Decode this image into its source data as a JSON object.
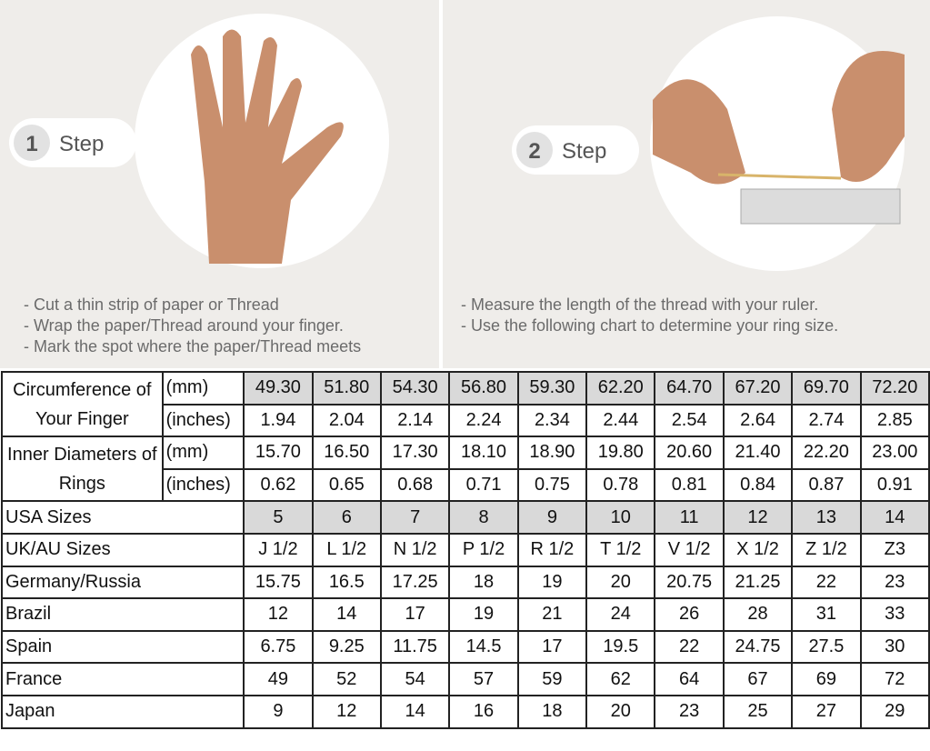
{
  "steps": [
    {
      "number": "1",
      "label": "Step",
      "instructions": [
        "- Cut a thin strip of paper or Thread",
        "- Wrap the paper/Thread around your finger.",
        "- Mark the spot where the paper/Thread meets"
      ]
    },
    {
      "number": "2",
      "label": "Step",
      "instructions": [
        "- Measure the length of the thread with your ruler.",
        "- Use the following chart to determine your ring size."
      ]
    }
  ],
  "table": {
    "measurements": [
      {
        "label": "Circumference of Your Finger",
        "rows": [
          {
            "unit": "(mm)",
            "values": [
              "49.30",
              "51.80",
              "54.30",
              "56.80",
              "59.30",
              "62.20",
              "64.70",
              "67.20",
              "69.70",
              "72.20"
            ]
          },
          {
            "unit": "(inches)",
            "values": [
              "1.94",
              "2.04",
              "2.14",
              "2.24",
              "2.34",
              "2.44",
              "2.54",
              "2.64",
              "2.74",
              "2.85"
            ]
          }
        ]
      },
      {
        "label": "Inner Diameters of Rings",
        "rows": [
          {
            "unit": "(mm)",
            "values": [
              "15.70",
              "16.50",
              "17.30",
              "18.10",
              "18.90",
              "19.80",
              "20.60",
              "21.40",
              "22.20",
              "23.00"
            ]
          },
          {
            "unit": "(inches)",
            "values": [
              "0.62",
              "0.65",
              "0.68",
              "0.71",
              "0.75",
              "0.78",
              "0.81",
              "0.84",
              "0.87",
              "0.91"
            ]
          }
        ]
      }
    ],
    "sizes": [
      {
        "label": "USA Sizes",
        "values": [
          "5",
          "6",
          "7",
          "8",
          "9",
          "10",
          "11",
          "12",
          "13",
          "14"
        ]
      },
      {
        "label": "UK/AU Sizes",
        "values": [
          "J 1/2",
          "L 1/2",
          "N 1/2",
          "P 1/2",
          "R 1/2",
          "T 1/2",
          "V 1/2",
          "X 1/2",
          "Z 1/2",
          "Z3"
        ]
      },
      {
        "label": "Germany/Russia",
        "values": [
          "15.75",
          "16.5",
          "17.25",
          "18",
          "19",
          "20",
          "20.75",
          "21.25",
          "22",
          "23"
        ]
      },
      {
        "label": "Brazil",
        "values": [
          "12",
          "14",
          "17",
          "19",
          "21",
          "24",
          "26",
          "28",
          "31",
          "33"
        ]
      },
      {
        "label": "Spain",
        "values": [
          "6.75",
          "9.25",
          "11.75",
          "14.5",
          "17",
          "19.5",
          "22",
          "24.75",
          "27.5",
          "30"
        ]
      },
      {
        "label": "France",
        "values": [
          "49",
          "52",
          "54",
          "57",
          "59",
          "62",
          "64",
          "67",
          "69",
          "72"
        ]
      },
      {
        "label": "Japan",
        "values": [
          "9",
          "12",
          "14",
          "16",
          "18",
          "20",
          "23",
          "25",
          "27",
          "29"
        ]
      }
    ]
  }
}
